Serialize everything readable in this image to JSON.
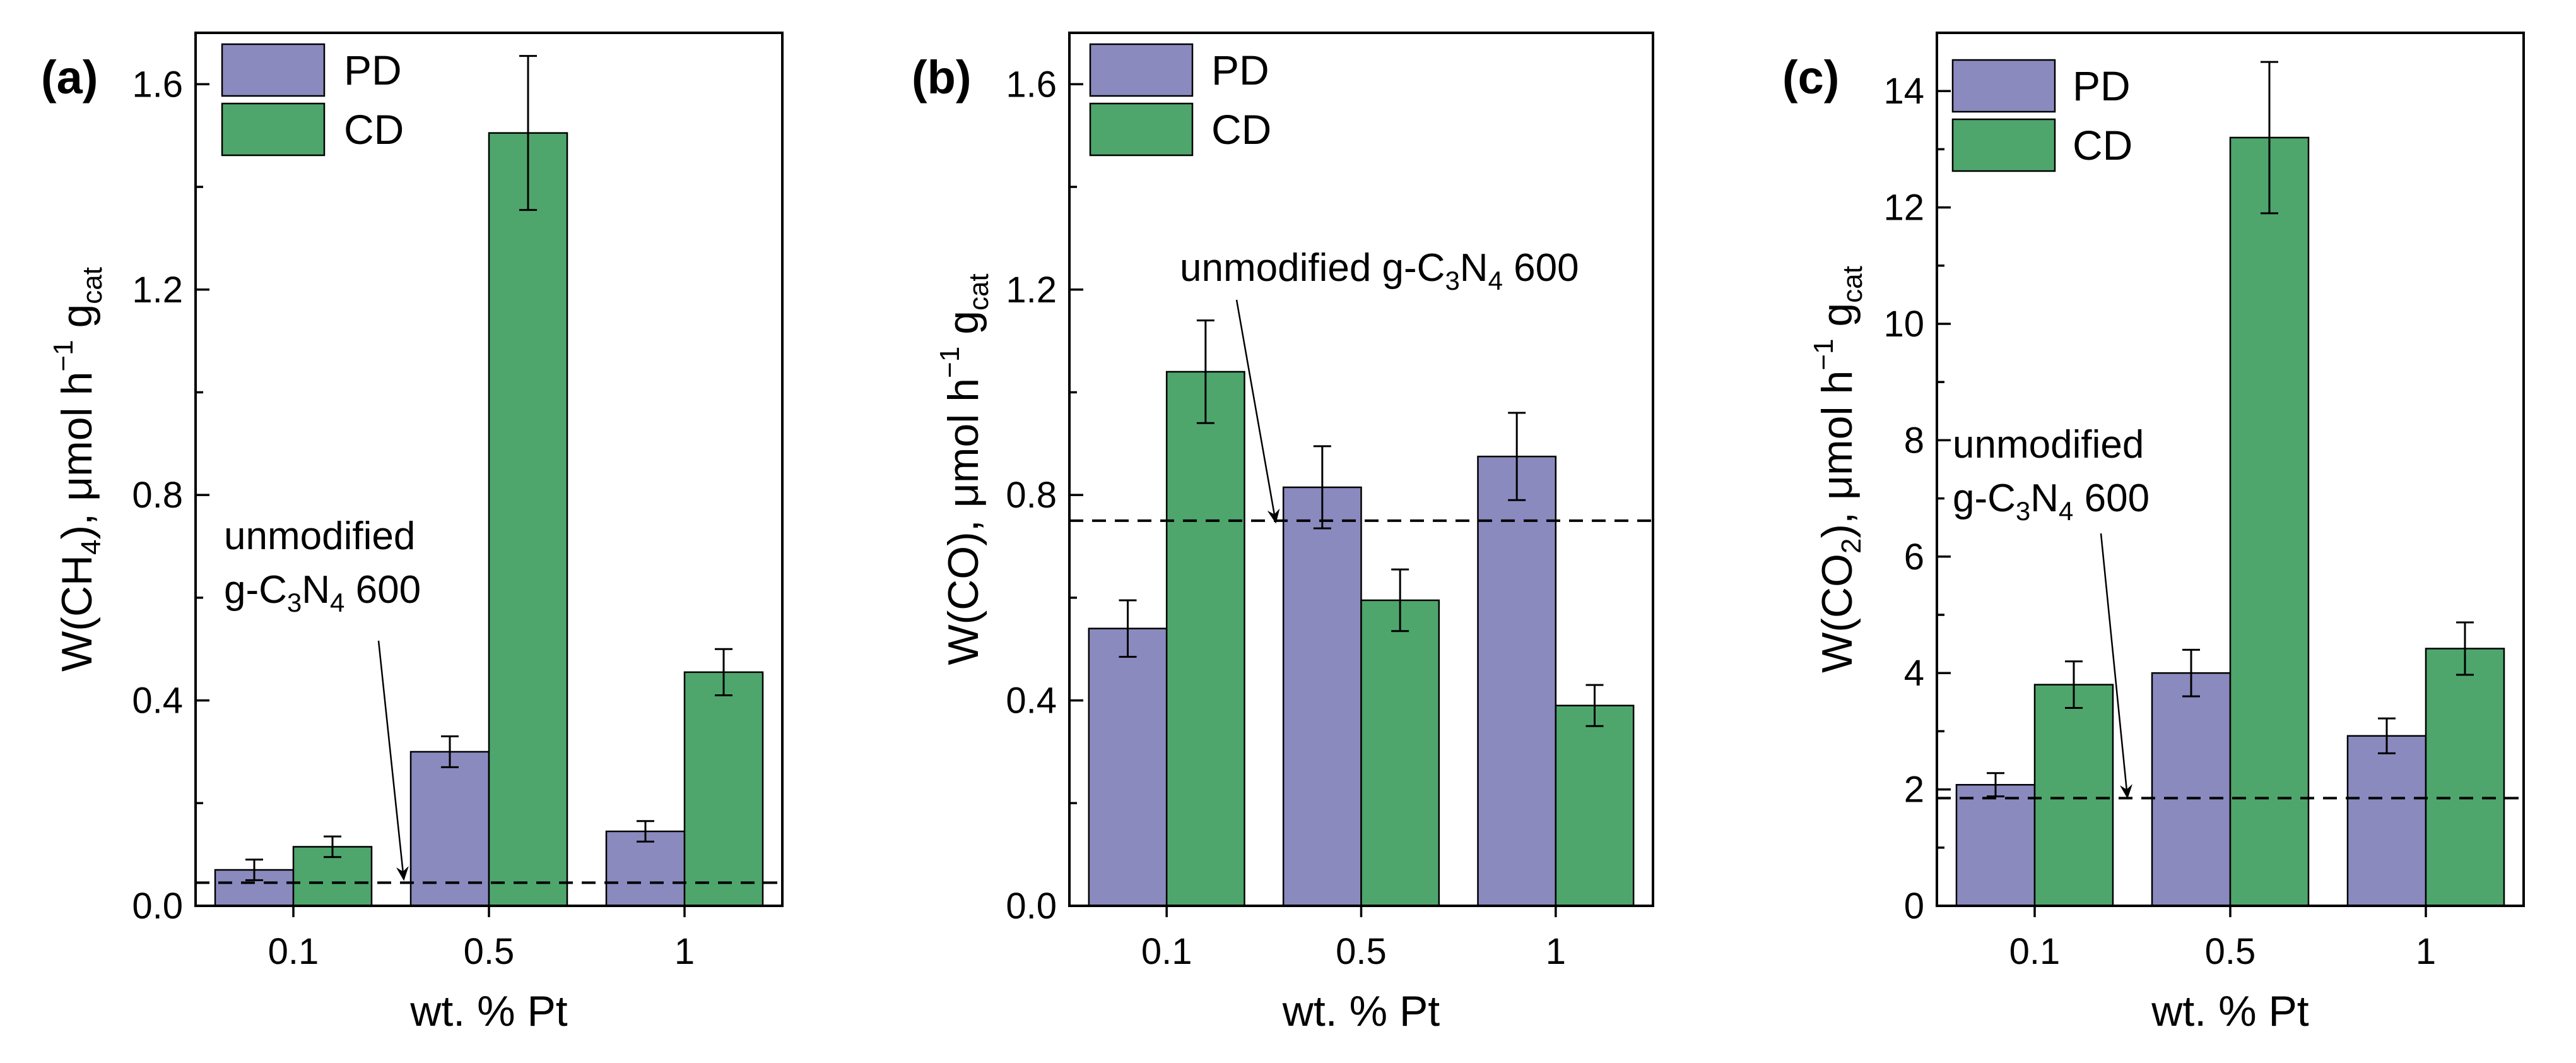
{
  "chart_data": [
    {
      "type": "bar",
      "panel_label": "(a)",
      "categories": [
        "0.1",
        "0.5",
        "1"
      ],
      "xlabel": "wt. % Pt",
      "ylabel": {
        "prefix": "W(CH",
        "sub": "4",
        "suffix": "), μmol h",
        "sup": "−1",
        "g": " g",
        "gsub": "cat"
      },
      "ylim": [
        0,
        1.7
      ],
      "yticks": [
        0.0,
        0.4,
        0.8,
        1.2,
        1.6
      ],
      "ytick_labels": [
        "0.0",
        "0.4",
        "0.8",
        "1.2",
        "1.6"
      ],
      "minor_step": 0.2,
      "series": [
        {
          "name": "PD",
          "color": "#8a8abf",
          "values": [
            0.07,
            0.3,
            0.145
          ],
          "errors": [
            0.02,
            0.03,
            0.02
          ]
        },
        {
          "name": "CD",
          "color": "#4ea66c",
          "values": [
            0.115,
            1.505,
            0.455
          ],
          "errors": [
            0.02,
            0.15,
            0.045
          ]
        }
      ],
      "reference_line": {
        "value": 0.045,
        "label_lines": [
          "unmodified",
          "g-C₃N₄ 600"
        ],
        "label_line1": "unmodified",
        "label_line2_a": "g-C",
        "label_line2_sub1": "3",
        "label_line2_b": "N",
        "label_line2_sub2": "4",
        "label_line2_c": " 600"
      },
      "legend": "top-left"
    },
    {
      "type": "bar",
      "panel_label": "(b)",
      "categories": [
        "0.1",
        "0.5",
        "1"
      ],
      "xlabel": "wt. % Pt",
      "ylabel": {
        "prefix": "W(CO), μmol h",
        "sub": "",
        "suffix": "",
        "sup": "−1",
        "g": " g",
        "gsub": "cat"
      },
      "ylim": [
        0,
        1.7
      ],
      "yticks": [
        0.0,
        0.4,
        0.8,
        1.2,
        1.6
      ],
      "ytick_labels": [
        "0.0",
        "0.4",
        "0.8",
        "1.2",
        "1.6"
      ],
      "minor_step": 0.2,
      "series": [
        {
          "name": "PD",
          "color": "#8a8abf",
          "values": [
            0.54,
            0.815,
            0.875
          ],
          "errors": [
            0.055,
            0.08,
            0.085
          ]
        },
        {
          "name": "CD",
          "color": "#4ea66c",
          "values": [
            1.04,
            0.595,
            0.39
          ],
          "errors": [
            0.1,
            0.06,
            0.04
          ]
        }
      ],
      "reference_line": {
        "value": 0.75,
        "label_line1": "",
        "label_line2_a": "unmodified g-C",
        "label_line2_sub1": "3",
        "label_line2_b": "N",
        "label_line2_sub2": "4",
        "label_line2_c": " 600"
      },
      "legend": "top-left"
    },
    {
      "type": "bar",
      "panel_label": "(c)",
      "categories": [
        "0.1",
        "0.5",
        "1"
      ],
      "xlabel": "wt. % Pt",
      "ylabel": {
        "prefix": "W(CO",
        "sub": "2",
        "suffix": "), μmol h",
        "sup": "−1",
        "g": " g",
        "gsub": "cat"
      },
      "ylim": [
        0,
        15
      ],
      "yticks": [
        0,
        2,
        4,
        6,
        8,
        10,
        12,
        14
      ],
      "ytick_labels": [
        "0",
        "2",
        "4",
        "6",
        "8",
        "10",
        "12",
        "14"
      ],
      "minor_step": 1,
      "series": [
        {
          "name": "PD",
          "color": "#8a8abf",
          "values": [
            2.08,
            4.0,
            2.92
          ],
          "errors": [
            0.2,
            0.4,
            0.3
          ]
        },
        {
          "name": "CD",
          "color": "#4ea66c",
          "values": [
            3.8,
            13.2,
            4.42
          ],
          "errors": [
            0.4,
            1.3,
            0.45
          ]
        }
      ],
      "reference_line": {
        "value": 1.85,
        "label_line1": "unmodified",
        "label_line2_a": "g-C",
        "label_line2_sub1": "3",
        "label_line2_b": "N",
        "label_line2_sub2": "4",
        "label_line2_c": " 600"
      },
      "legend": "top-left"
    }
  ]
}
